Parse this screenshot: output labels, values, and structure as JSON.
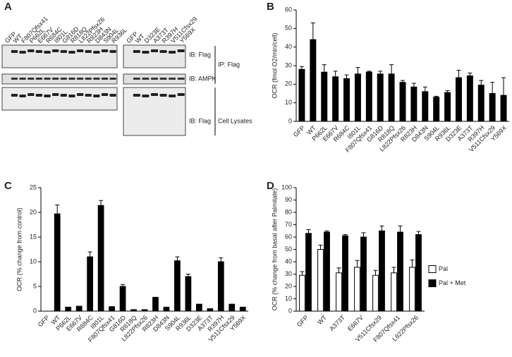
{
  "panel_labels": [
    "A",
    "B",
    "C",
    "D"
  ],
  "blot": {
    "left_lanes": [
      "GFP",
      "WT",
      "F807Qfsx41",
      "P662L",
      "E667V",
      "R684C",
      "I801L",
      "G816D",
      "R818Q",
      "L822Pfsx26",
      "R823H",
      "D843N",
      "S904L",
      "R936L"
    ],
    "right_lanes": [
      "GFP",
      "WT",
      "D323E",
      "A373T",
      "R397H",
      "V511Cfsx29",
      "Y569X"
    ],
    "row_labels": [
      "IB: Flag",
      "IB: AMPK",
      "IB: Flag"
    ],
    "group_labels": [
      "IP: Flag",
      "Cell Lysates"
    ]
  },
  "chart_data": [
    {
      "type": "bar",
      "y_label": "OCR (fmol O2/min/cell)",
      "categories": [
        "GFP",
        "WT",
        "P662L",
        "E667V",
        "R684C",
        "I801L",
        "F807Qfsx41",
        "G816D",
        "R818Q",
        "L822Pfsx26",
        "R823H",
        "D843N",
        "S904L",
        "R936L",
        "D323E",
        "A373T",
        "R397H",
        "V511Cfsx29",
        "Y569X"
      ],
      "values": [
        28,
        44,
        26.5,
        24,
        23,
        25.5,
        26.5,
        25.5,
        25.5,
        21,
        18.5,
        16,
        13,
        15.5,
        23.5,
        24.5,
        19.5,
        15,
        14
      ],
      "errors": [
        1.5,
        9,
        4,
        3,
        2,
        3.5,
        0.5,
        1.5,
        5,
        1,
        2,
        2.5,
        0.5,
        1,
        4,
        1.5,
        2.5,
        6,
        9.5
      ],
      "color": "#000000",
      "ylim": [
        0,
        60
      ],
      "yticks": [
        0,
        10,
        20,
        30,
        40,
        50,
        60
      ]
    },
    {
      "type": "bar",
      "y_label": "OCR (% change from control)",
      "categories": [
        "GFP",
        "WT",
        "P662L",
        "E667V",
        "R684C",
        "I801L",
        "F807Qfsx41",
        "G816D",
        "R818Q",
        "L822Pfsx26",
        "R823H",
        "D843N",
        "S904L",
        "R936L",
        "D323E",
        "A373T",
        "R397H",
        "V511Cfsx29",
        "Y569X"
      ],
      "values": [
        0,
        19.7,
        0.8,
        1,
        11,
        21.4,
        0.9,
        5,
        0.3,
        0.3,
        2.8,
        0.8,
        10.2,
        7,
        1.4,
        0.5,
        10,
        1.4,
        0.8
      ],
      "errors": [
        0,
        1.8,
        0,
        0,
        1,
        1,
        0,
        0.4,
        0,
        0,
        0,
        0,
        0.8,
        0.5,
        0,
        0,
        0.8,
        0,
        0
      ],
      "color": "#000000",
      "ylim": [
        0,
        25
      ],
      "yticks": [
        0,
        5,
        10,
        15,
        20,
        25
      ]
    },
    {
      "type": "bar",
      "y_label": "OCR (% change from basal after Palmitate)",
      "categories": [
        "GFP",
        "WT",
        "A373T",
        "E667V",
        "V511Cfsx29",
        "F807Qfsx41",
        "L822Pfsx26"
      ],
      "series": [
        {
          "name": "Pal",
          "color": "#ffffff",
          "values": [
            29,
            50,
            31,
            35.5,
            29,
            31,
            35.5
          ],
          "errors": [
            3,
            3.5,
            4,
            5.5,
            4,
            4.5,
            6
          ]
        },
        {
          "name": "Pal + Met",
          "color": "#000000",
          "values": [
            63,
            64,
            61,
            60,
            65,
            64,
            62
          ],
          "errors": [
            3,
            1,
            1,
            3.5,
            4,
            5,
            2.5
          ]
        }
      ],
      "ylim": [
        0,
        100
      ],
      "yticks": [
        0,
        10,
        20,
        30,
        40,
        50,
        60,
        70,
        80,
        90,
        100
      ],
      "legend": "right"
    }
  ]
}
